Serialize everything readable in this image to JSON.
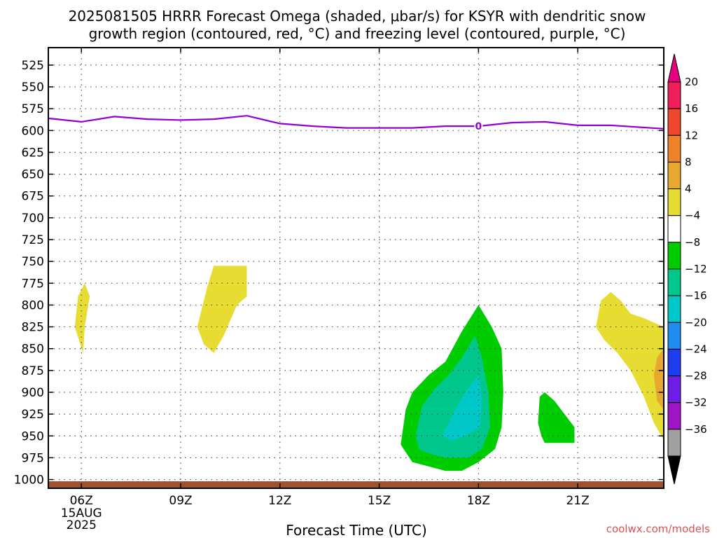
{
  "title_line1": "2025081505 HRRR Forecast Omega (shaded, μbar/s) for KSYR with dendritic snow",
  "title_line2": "growth region (contoured, red, °C) and freezing level (contoured, purple, °C)",
  "xlabel": "Forecast Time (UTC)",
  "credit": "coolwx.com/models",
  "chart_data": {
    "type": "heatmap",
    "title": "2025081505 HRRR Forecast Omega (shaded, μbar/s) for KSYR with dendritic snow growth region (contoured, red, °C) and freezing level (contoured, purple, °C)",
    "xlabel": "Forecast Time (UTC)",
    "ylabel": "",
    "x_units": "hours UTC, 15 Aug 2025",
    "xlim": [
      5,
      23.6
    ],
    "ylim": [
      1010,
      505
    ],
    "x_ticks": [
      {
        "value": 6,
        "label": "06Z",
        "sub": [
          "15AUG",
          "2025"
        ]
      },
      {
        "value": 9,
        "label": "09Z",
        "sub": []
      },
      {
        "value": 12,
        "label": "12Z",
        "sub": []
      },
      {
        "value": 15,
        "label": "15Z",
        "sub": []
      },
      {
        "value": 18,
        "label": "18Z",
        "sub": []
      },
      {
        "value": 21,
        "label": "21Z",
        "sub": []
      }
    ],
    "y_ticks": [
      525,
      550,
      575,
      600,
      625,
      650,
      675,
      700,
      725,
      750,
      775,
      800,
      825,
      850,
      875,
      900,
      925,
      950,
      975,
      1000
    ],
    "grid": true,
    "colorbar": {
      "labels": [
        20,
        16,
        12,
        8,
        4,
        -4,
        -8,
        -12,
        -16,
        -20,
        -24,
        -28,
        -32,
        -36
      ],
      "colors": [
        "#f01e5a",
        "#f0462d",
        "#ee8228",
        "#e6a82e",
        "#e6dc32",
        "#ffffff",
        "#00cd00",
        "#00c88c",
        "#00c8c8",
        "#1e8cf0",
        "#1e3cf0",
        "#6e1ee6",
        "#a014c8",
        "#a0a0a0"
      ]
    },
    "freezing_level": {
      "label": "0",
      "label_x": 18,
      "color": "#9400d3",
      "points": [
        [
          5,
          586
        ],
        [
          6,
          590
        ],
        [
          7,
          584
        ],
        [
          8,
          587
        ],
        [
          9,
          588
        ],
        [
          10,
          587
        ],
        [
          11,
          583
        ],
        [
          12,
          592
        ],
        [
          13,
          595
        ],
        [
          14,
          597
        ],
        [
          15,
          597
        ],
        [
          16,
          597
        ],
        [
          17,
          595
        ],
        [
          18,
          595
        ],
        [
          19,
          591
        ],
        [
          20,
          590
        ],
        [
          21,
          594
        ],
        [
          22,
          594
        ],
        [
          23.6,
          598
        ]
      ]
    },
    "surface": {
      "color": "#a0522d",
      "pressure_top": 1002
    },
    "regions": [
      {
        "color": "#e6dc32",
        "points": [
          [
            5.8,
            825
          ],
          [
            5.9,
            790
          ],
          [
            6.1,
            775
          ],
          [
            6.25,
            790
          ],
          [
            6.1,
            825
          ],
          [
            6.05,
            855
          ]
        ]
      },
      {
        "color": "#e6dc32",
        "points": [
          [
            9.5,
            825
          ],
          [
            9.8,
            780
          ],
          [
            10.0,
            755
          ],
          [
            11.0,
            755
          ],
          [
            11.0,
            790
          ],
          [
            10.7,
            800
          ],
          [
            10.3,
            835
          ],
          [
            10.0,
            855
          ],
          [
            9.7,
            845
          ]
        ]
      },
      {
        "color": "#00cd00",
        "points": [
          [
            15.65,
            960
          ],
          [
            15.8,
            920
          ],
          [
            16.0,
            900
          ],
          [
            16.5,
            880
          ],
          [
            17.0,
            865
          ],
          [
            17.5,
            830
          ],
          [
            18.0,
            800
          ],
          [
            18.4,
            825
          ],
          [
            18.7,
            850
          ],
          [
            18.75,
            900
          ],
          [
            18.7,
            940
          ],
          [
            18.5,
            965
          ],
          [
            18.0,
            980
          ],
          [
            17.5,
            990
          ],
          [
            17.0,
            990
          ],
          [
            16.5,
            985
          ],
          [
            16.0,
            980
          ]
        ]
      },
      {
        "color": "#00c88c",
        "points": [
          [
            16.1,
            950
          ],
          [
            16.3,
            915
          ],
          [
            16.7,
            895
          ],
          [
            17.1,
            880
          ],
          [
            17.5,
            860
          ],
          [
            17.9,
            835
          ],
          [
            18.1,
            860
          ],
          [
            18.3,
            900
          ],
          [
            18.35,
            940
          ],
          [
            18.1,
            965
          ],
          [
            17.7,
            975
          ],
          [
            17.0,
            975
          ],
          [
            16.5,
            970
          ],
          [
            16.2,
            965
          ]
        ]
      },
      {
        "color": "#00c8c8",
        "points": [
          [
            16.9,
            950
          ],
          [
            17.3,
            920
          ],
          [
            17.6,
            900
          ],
          [
            18.0,
            880
          ],
          [
            18.1,
            905
          ],
          [
            18.05,
            940
          ],
          [
            17.6,
            950
          ],
          [
            17.2,
            955
          ]
        ]
      },
      {
        "color": "#00cd00",
        "points": [
          [
            19.8,
            935
          ],
          [
            19.85,
            905
          ],
          [
            20.0,
            900
          ],
          [
            20.3,
            910
          ],
          [
            20.6,
            925
          ],
          [
            20.9,
            940
          ],
          [
            20.9,
            958
          ],
          [
            20.0,
            958
          ],
          [
            19.9,
            950
          ]
        ]
      },
      {
        "color": "#e6dc32",
        "points": [
          [
            21.55,
            825
          ],
          [
            21.7,
            795
          ],
          [
            22.0,
            785
          ],
          [
            22.3,
            795
          ],
          [
            22.6,
            810
          ],
          [
            23.0,
            815
          ],
          [
            23.6,
            825
          ],
          [
            23.6,
            955
          ],
          [
            23.3,
            935
          ],
          [
            23.0,
            905
          ],
          [
            22.6,
            875
          ],
          [
            22.2,
            855
          ],
          [
            21.8,
            840
          ]
        ]
      },
      {
        "color": "#e6a82e",
        "points": [
          [
            23.3,
            880
          ],
          [
            23.4,
            860
          ],
          [
            23.6,
            850
          ],
          [
            23.6,
            920
          ],
          [
            23.4,
            910
          ]
        ]
      }
    ]
  }
}
